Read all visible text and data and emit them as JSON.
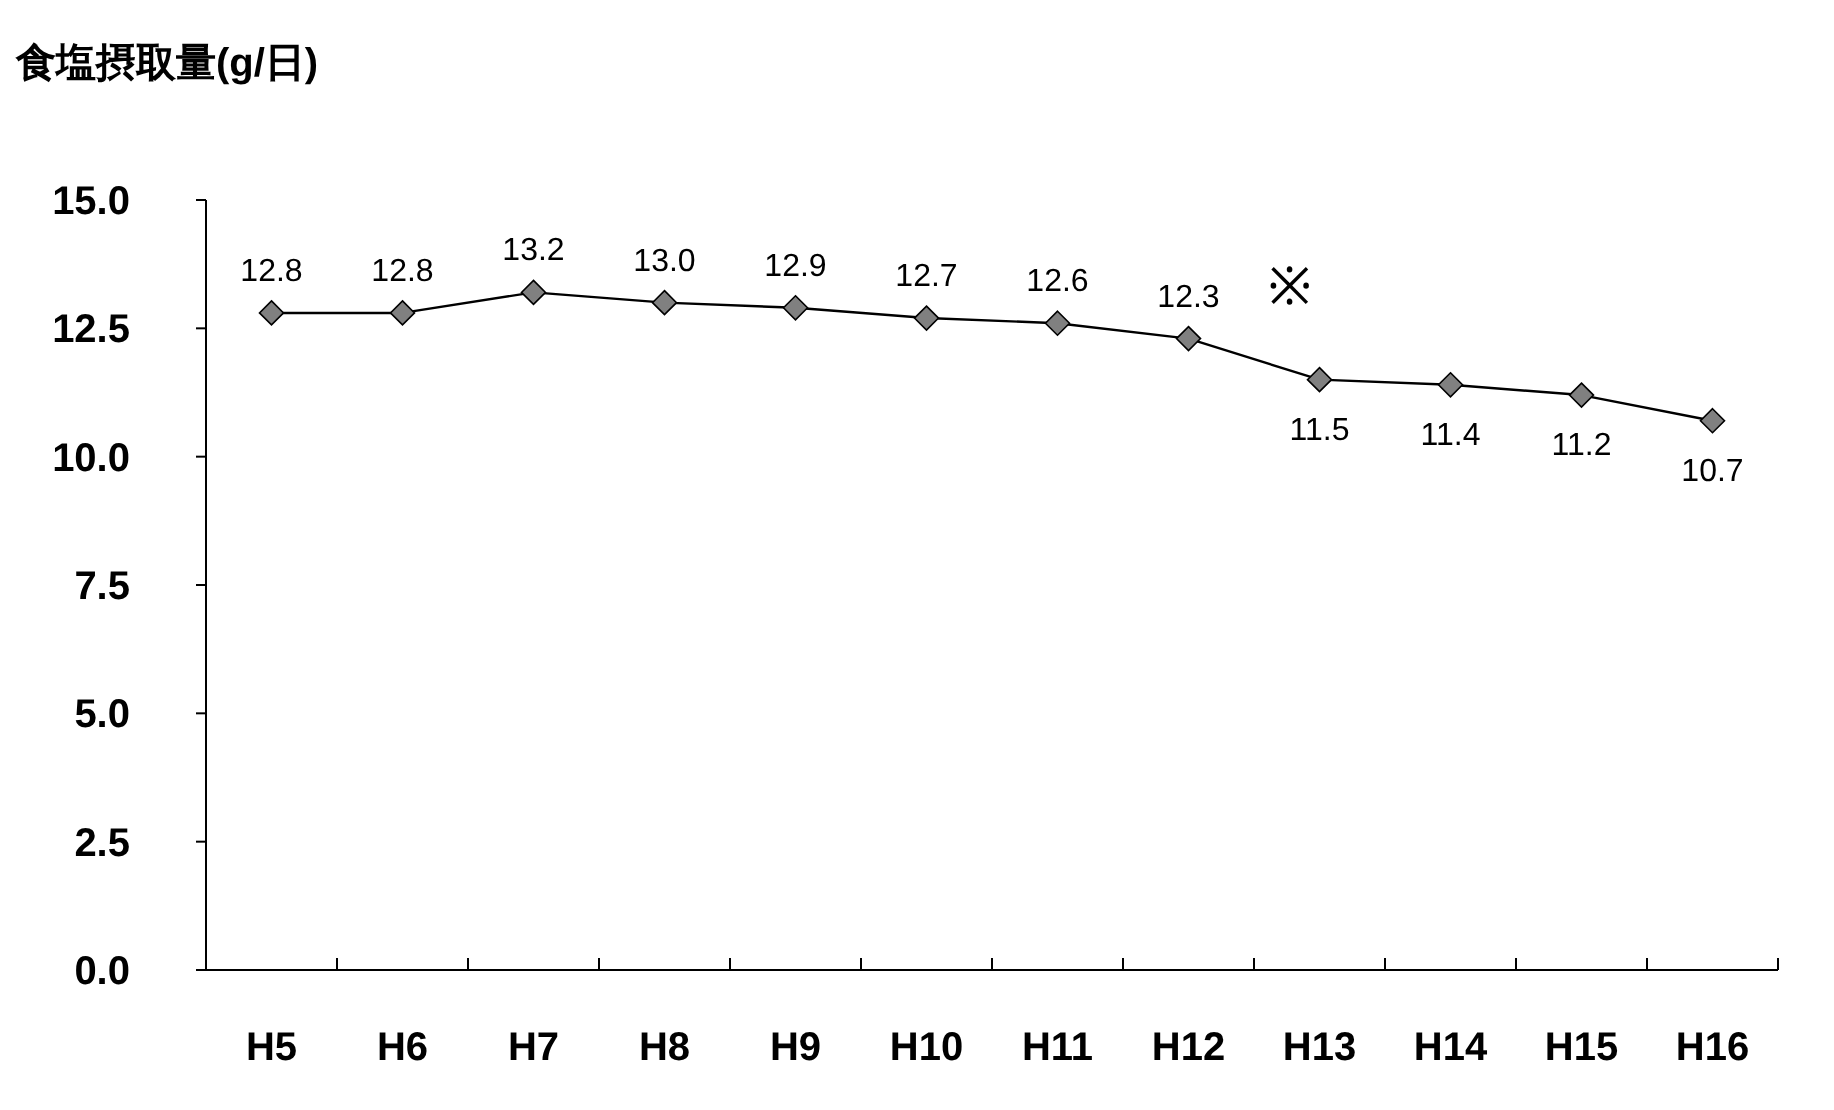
{
  "chart_data": {
    "type": "line",
    "ylabel": "食塩摂取量(g/日)",
    "categories": [
      "H5",
      "H6",
      "H7",
      "H8",
      "H9",
      "H10",
      "H11",
      "H12",
      "H13",
      "H14",
      "H15",
      "H16"
    ],
    "series": [
      {
        "color": "#808080",
        "values": [
          12.8,
          12.8,
          13.2,
          13.0,
          12.9,
          12.7,
          12.6,
          12.3,
          11.5,
          11.4,
          11.2,
          10.7
        ]
      }
    ],
    "ylim": [
      0,
      15
    ],
    "yticks": [
      {
        "value": 0,
        "label": "0.0"
      },
      {
        "value": 2.5,
        "label": "2.5"
      },
      {
        "value": 5,
        "label": "5.0"
      },
      {
        "value": 7.5,
        "label": "7.5"
      },
      {
        "value": 10,
        "label": "10.0"
      },
      {
        "value": 12.5,
        "label": "12.5"
      },
      {
        "value": 15,
        "label": "15.0"
      }
    ],
    "value_labels": [
      "12.8",
      "12.8",
      "13.2",
      "13.0",
      "12.9",
      "12.7",
      "12.6",
      "12.3",
      "11.5",
      "11.4",
      "11.2",
      "10.7"
    ],
    "marker": "diamond",
    "grid": false,
    "annotations": [
      "※"
    ]
  }
}
